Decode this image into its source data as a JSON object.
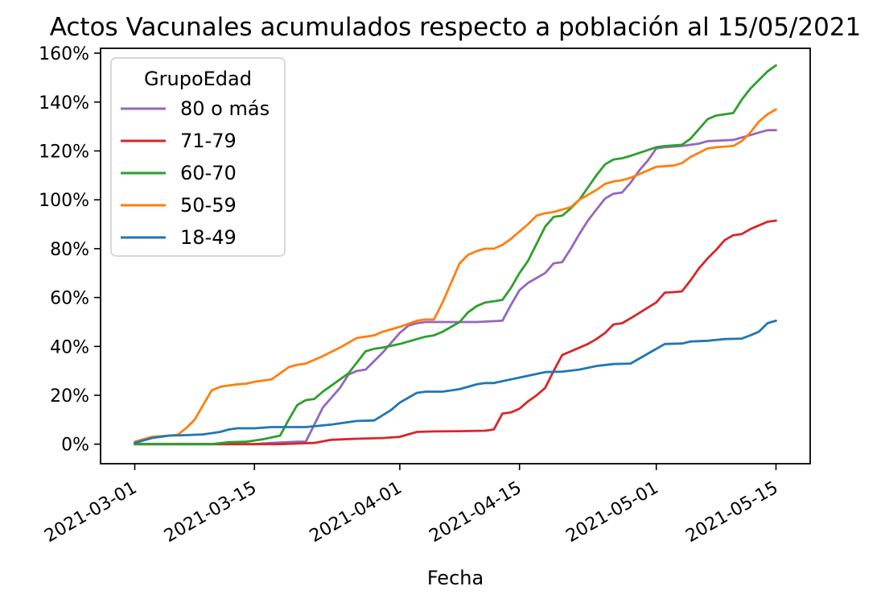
{
  "chart_data": {
    "type": "line",
    "title": "Actos Vacunales acumulados respecto a población al 15/05/2021",
    "xlabel": "Fecha",
    "ylabel": "",
    "xlim": [
      "2021-02-25",
      "2021-05-19"
    ],
    "ylim": [
      -8,
      162
    ],
    "grid": false,
    "x_ticks": [
      "2021-03-01",
      "2021-03-15",
      "2021-04-01",
      "2021-04-15",
      "2021-05-01",
      "2021-05-15"
    ],
    "y_ticks": [
      {
        "value": 0,
        "label": "0%"
      },
      {
        "value": 20,
        "label": "20%"
      },
      {
        "value": 40,
        "label": "40%"
      },
      {
        "value": 60,
        "label": "60%"
      },
      {
        "value": 80,
        "label": "80%"
      },
      {
        "value": 100,
        "label": "100%"
      },
      {
        "value": 120,
        "label": "120%"
      },
      {
        "value": 140,
        "label": "140%"
      },
      {
        "value": 160,
        "label": "160%"
      }
    ],
    "legend": {
      "title": "GrupoEdad",
      "placement": "top-left"
    },
    "series": [
      {
        "name": "80 o más",
        "color": "#9467bd",
        "points": [
          [
            "2021-03-01",
            0
          ],
          [
            "2021-03-15",
            0
          ],
          [
            "2021-03-17",
            0.5
          ],
          [
            "2021-03-20",
            1
          ],
          [
            "2021-03-21",
            1
          ],
          [
            "2021-03-22",
            8
          ],
          [
            "2021-03-23",
            15
          ],
          [
            "2021-03-25",
            23
          ],
          [
            "2021-03-26",
            28.5
          ],
          [
            "2021-03-27",
            30
          ],
          [
            "2021-03-28",
            30.5
          ],
          [
            "2021-03-30",
            37.5
          ],
          [
            "2021-04-01",
            45.5
          ],
          [
            "2021-04-02",
            48.5
          ],
          [
            "2021-04-03",
            49.5
          ],
          [
            "2021-04-04",
            50
          ],
          [
            "2021-04-10",
            50
          ],
          [
            "2021-04-13",
            50.5
          ],
          [
            "2021-04-14",
            57
          ],
          [
            "2021-04-15",
            63
          ],
          [
            "2021-04-16",
            66
          ],
          [
            "2021-04-18",
            70
          ],
          [
            "2021-04-19",
            74
          ],
          [
            "2021-04-20",
            74.5
          ],
          [
            "2021-04-21",
            80
          ],
          [
            "2021-04-22",
            86
          ],
          [
            "2021-04-23",
            91.5
          ],
          [
            "2021-04-24",
            96
          ],
          [
            "2021-04-25",
            100.5
          ],
          [
            "2021-04-26",
            102.5
          ],
          [
            "2021-04-27",
            103
          ],
          [
            "2021-04-28",
            107
          ],
          [
            "2021-04-29",
            112
          ],
          [
            "2021-04-30",
            116
          ],
          [
            "2021-05-01",
            121
          ],
          [
            "2021-05-02",
            121.5
          ],
          [
            "2021-05-04",
            122
          ],
          [
            "2021-05-06",
            123
          ],
          [
            "2021-05-07",
            124
          ],
          [
            "2021-05-10",
            124.5
          ],
          [
            "2021-05-12",
            126.5
          ],
          [
            "2021-05-13",
            127.5
          ],
          [
            "2021-05-14",
            128.5
          ],
          [
            "2021-05-15",
            128.5
          ]
        ]
      },
      {
        "name": "71-79",
        "color": "#d62728",
        "points": [
          [
            "2021-03-01",
            0
          ],
          [
            "2021-03-18",
            0
          ],
          [
            "2021-03-22",
            0.5
          ],
          [
            "2021-03-24",
            1.8
          ],
          [
            "2021-03-27",
            2.2
          ],
          [
            "2021-03-30",
            2.5
          ],
          [
            "2021-04-01",
            3
          ],
          [
            "2021-04-03",
            5
          ],
          [
            "2021-04-05",
            5.2
          ],
          [
            "2021-04-08",
            5.3
          ],
          [
            "2021-04-11",
            5.5
          ],
          [
            "2021-04-12",
            6
          ],
          [
            "2021-04-13",
            12.5
          ],
          [
            "2021-04-14",
            13
          ],
          [
            "2021-04-15",
            14.5
          ],
          [
            "2021-04-16",
            17.5
          ],
          [
            "2021-04-17",
            20
          ],
          [
            "2021-04-18",
            23
          ],
          [
            "2021-04-19",
            30
          ],
          [
            "2021-04-20",
            36.5
          ],
          [
            "2021-04-21",
            38
          ],
          [
            "2021-04-23",
            41
          ],
          [
            "2021-04-24",
            43
          ],
          [
            "2021-04-25",
            45.5
          ],
          [
            "2021-04-26",
            49
          ],
          [
            "2021-04-27",
            49.5
          ],
          [
            "2021-04-28",
            51.5
          ],
          [
            "2021-05-01",
            58
          ],
          [
            "2021-05-02",
            62
          ],
          [
            "2021-05-03",
            62.2
          ],
          [
            "2021-05-04",
            62.5
          ],
          [
            "2021-05-05",
            67
          ],
          [
            "2021-05-06",
            72
          ],
          [
            "2021-05-07",
            76
          ],
          [
            "2021-05-08",
            79.5
          ],
          [
            "2021-05-09",
            83.5
          ],
          [
            "2021-05-10",
            85.5
          ],
          [
            "2021-05-11",
            86
          ],
          [
            "2021-05-12",
            88
          ],
          [
            "2021-05-13",
            89.5
          ],
          [
            "2021-05-14",
            91
          ],
          [
            "2021-05-15",
            91.5
          ]
        ]
      },
      {
        "name": "60-70",
        "color": "#2ca02c",
        "points": [
          [
            "2021-03-01",
            0
          ],
          [
            "2021-03-10",
            0
          ],
          [
            "2021-03-12",
            0.8
          ],
          [
            "2021-03-14",
            1
          ],
          [
            "2021-03-16",
            2
          ],
          [
            "2021-03-18",
            3.5
          ],
          [
            "2021-03-19",
            10
          ],
          [
            "2021-03-20",
            16
          ],
          [
            "2021-03-21",
            18
          ],
          [
            "2021-03-22",
            18.5
          ],
          [
            "2021-03-23",
            21.5
          ],
          [
            "2021-03-26",
            29
          ],
          [
            "2021-03-28",
            38
          ],
          [
            "2021-03-29",
            39
          ],
          [
            "2021-03-30",
            39.5
          ],
          [
            "2021-04-01",
            41
          ],
          [
            "2021-04-03",
            43
          ],
          [
            "2021-04-04",
            44
          ],
          [
            "2021-04-05",
            44.5
          ],
          [
            "2021-04-06",
            46
          ],
          [
            "2021-04-08",
            50
          ],
          [
            "2021-04-09",
            54
          ],
          [
            "2021-04-10",
            56.5
          ],
          [
            "2021-04-11",
            58
          ],
          [
            "2021-04-12",
            58.5
          ],
          [
            "2021-04-13",
            59
          ],
          [
            "2021-04-14",
            64
          ],
          [
            "2021-04-15",
            70
          ],
          [
            "2021-04-16",
            75
          ],
          [
            "2021-04-17",
            82
          ],
          [
            "2021-04-18",
            89
          ],
          [
            "2021-04-19",
            93
          ],
          [
            "2021-04-20",
            93.5
          ],
          [
            "2021-04-21",
            96.5
          ],
          [
            "2021-04-22",
            100
          ],
          [
            "2021-04-23",
            105
          ],
          [
            "2021-04-24",
            110
          ],
          [
            "2021-04-25",
            114.5
          ],
          [
            "2021-04-26",
            116.5
          ],
          [
            "2021-04-27",
            117
          ],
          [
            "2021-04-28",
            118
          ],
          [
            "2021-05-01",
            121.5
          ],
          [
            "2021-05-02",
            122
          ],
          [
            "2021-05-04",
            122.5
          ],
          [
            "2021-05-05",
            125
          ],
          [
            "2021-05-06",
            129
          ],
          [
            "2021-05-07",
            133
          ],
          [
            "2021-05-08",
            134.5
          ],
          [
            "2021-05-09",
            135
          ],
          [
            "2021-05-10",
            135.5
          ],
          [
            "2021-05-11",
            141
          ],
          [
            "2021-05-12",
            145.5
          ],
          [
            "2021-05-13",
            149
          ],
          [
            "2021-05-14",
            152.5
          ],
          [
            "2021-05-15",
            155
          ]
        ]
      },
      {
        "name": "50-59",
        "color": "#ff7f0e",
        "points": [
          [
            "2021-03-01",
            1
          ],
          [
            "2021-03-03",
            3
          ],
          [
            "2021-03-05",
            3.5
          ],
          [
            "2021-03-06",
            3.8
          ],
          [
            "2021-03-07",
            6.5
          ],
          [
            "2021-03-08",
            10
          ],
          [
            "2021-03-09",
            16
          ],
          [
            "2021-03-10",
            22
          ],
          [
            "2021-03-11",
            23.5
          ],
          [
            "2021-03-12",
            24
          ],
          [
            "2021-03-13",
            24.5
          ],
          [
            "2021-03-14",
            24.7
          ],
          [
            "2021-03-15",
            25.5
          ],
          [
            "2021-03-17",
            26.5
          ],
          [
            "2021-03-19",
            31.5
          ],
          [
            "2021-03-20",
            32.5
          ],
          [
            "2021-03-21",
            33
          ],
          [
            "2021-03-23",
            36
          ],
          [
            "2021-03-25",
            39.5
          ],
          [
            "2021-03-27",
            43.5
          ],
          [
            "2021-03-28",
            44
          ],
          [
            "2021-03-29",
            44.5
          ],
          [
            "2021-03-30",
            46
          ],
          [
            "2021-04-01",
            48
          ],
          [
            "2021-04-03",
            50.5
          ],
          [
            "2021-04-04",
            51
          ],
          [
            "2021-04-05",
            51
          ],
          [
            "2021-04-06",
            58
          ],
          [
            "2021-04-07",
            66
          ],
          [
            "2021-04-08",
            74
          ],
          [
            "2021-04-09",
            77.5
          ],
          [
            "2021-04-10",
            79
          ],
          [
            "2021-04-11",
            80
          ],
          [
            "2021-04-12",
            80
          ],
          [
            "2021-04-13",
            81.5
          ],
          [
            "2021-04-14",
            84
          ],
          [
            "2021-04-15",
            87
          ],
          [
            "2021-04-16",
            90
          ],
          [
            "2021-04-17",
            93.5
          ],
          [
            "2021-04-18",
            94.5
          ],
          [
            "2021-04-19",
            95
          ],
          [
            "2021-04-21",
            97
          ],
          [
            "2021-04-22",
            100
          ],
          [
            "2021-04-24",
            104
          ],
          [
            "2021-04-25",
            106.5
          ],
          [
            "2021-04-26",
            107.5
          ],
          [
            "2021-04-27",
            108
          ],
          [
            "2021-04-28",
            109
          ],
          [
            "2021-04-30",
            112
          ],
          [
            "2021-05-01",
            113.5
          ],
          [
            "2021-05-03",
            114
          ],
          [
            "2021-05-04",
            115
          ],
          [
            "2021-05-05",
            117.5
          ],
          [
            "2021-05-07",
            121
          ],
          [
            "2021-05-08",
            121.5
          ],
          [
            "2021-05-10",
            122
          ],
          [
            "2021-05-11",
            124
          ],
          [
            "2021-05-12",
            127.5
          ],
          [
            "2021-05-13",
            132
          ],
          [
            "2021-05-14",
            135
          ],
          [
            "2021-05-15",
            137
          ]
        ]
      },
      {
        "name": "18-49",
        "color": "#1f77b4",
        "points": [
          [
            "2021-03-01",
            0.5
          ],
          [
            "2021-03-03",
            2.5
          ],
          [
            "2021-03-05",
            3.5
          ],
          [
            "2021-03-07",
            3.7
          ],
          [
            "2021-03-09",
            4
          ],
          [
            "2021-03-11",
            5
          ],
          [
            "2021-03-12",
            6
          ],
          [
            "2021-03-13",
            6.5
          ],
          [
            "2021-03-15",
            6.5
          ],
          [
            "2021-03-17",
            7
          ],
          [
            "2021-03-21",
            7
          ],
          [
            "2021-03-24",
            8
          ],
          [
            "2021-03-27",
            9.5
          ],
          [
            "2021-03-29",
            9.7
          ],
          [
            "2021-03-31",
            14
          ],
          [
            "2021-04-01",
            17
          ],
          [
            "2021-04-02",
            19
          ],
          [
            "2021-04-03",
            21
          ],
          [
            "2021-04-04",
            21.5
          ],
          [
            "2021-04-06",
            21.5
          ],
          [
            "2021-04-08",
            22.5
          ],
          [
            "2021-04-10",
            24.5
          ],
          [
            "2021-04-11",
            25
          ],
          [
            "2021-04-12",
            25
          ],
          [
            "2021-04-14",
            26.5
          ],
          [
            "2021-04-16",
            28
          ],
          [
            "2021-04-18",
            29.5
          ],
          [
            "2021-04-20",
            29.7
          ],
          [
            "2021-04-22",
            30.5
          ],
          [
            "2021-04-24",
            32
          ],
          [
            "2021-04-26",
            32.8
          ],
          [
            "2021-04-28",
            33
          ],
          [
            "2021-04-30",
            37
          ],
          [
            "2021-05-02",
            41
          ],
          [
            "2021-05-04",
            41.2
          ],
          [
            "2021-05-05",
            42
          ],
          [
            "2021-05-07",
            42.3
          ],
          [
            "2021-05-09",
            43
          ],
          [
            "2021-05-11",
            43.2
          ],
          [
            "2021-05-12",
            44.5
          ],
          [
            "2021-05-13",
            46
          ],
          [
            "2021-05-14",
            49.5
          ],
          [
            "2021-05-15",
            50.5
          ]
        ]
      }
    ]
  }
}
